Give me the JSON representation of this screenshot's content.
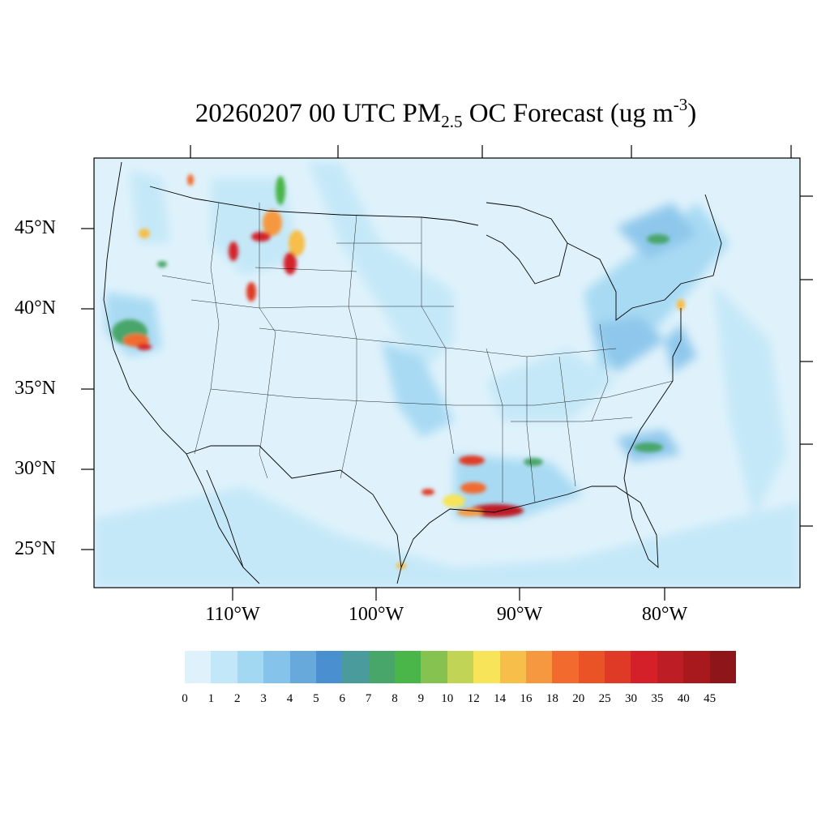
{
  "title": {
    "prefix": "20260207 00 UTC PM",
    "subscript": "2.5",
    "suffix": " OC Forecast (ug m",
    "superscript": "-3",
    "closing": ")"
  },
  "map": {
    "lat_labels": [
      "45°N",
      "40°N",
      "35°N",
      "30°N",
      "25°N"
    ],
    "lon_labels": [
      "110°W",
      "100°W",
      "90°W",
      "80°W"
    ],
    "background_color": "#dff2fb"
  },
  "legend": {
    "labels": [
      "0",
      "1",
      "2",
      "3",
      "4",
      "5",
      "6",
      "7",
      "8",
      "9",
      "10",
      "12",
      "14",
      "16",
      "18",
      "20",
      "25",
      "30",
      "35",
      "40",
      "45"
    ],
    "colors": [
      "#dff2fb",
      "#c2e7f8",
      "#a3d8f3",
      "#86c3ea",
      "#68a9dc",
      "#4a8fcf",
      "#4a9c9c",
      "#48a66b",
      "#4ab549",
      "#86c24f",
      "#c2d456",
      "#f7e458",
      "#f7be4a",
      "#f69840",
      "#f26a2d",
      "#ea5326",
      "#df3a26",
      "#d42029",
      "#bd1d25",
      "#a8191e",
      "#8e1519"
    ]
  }
}
